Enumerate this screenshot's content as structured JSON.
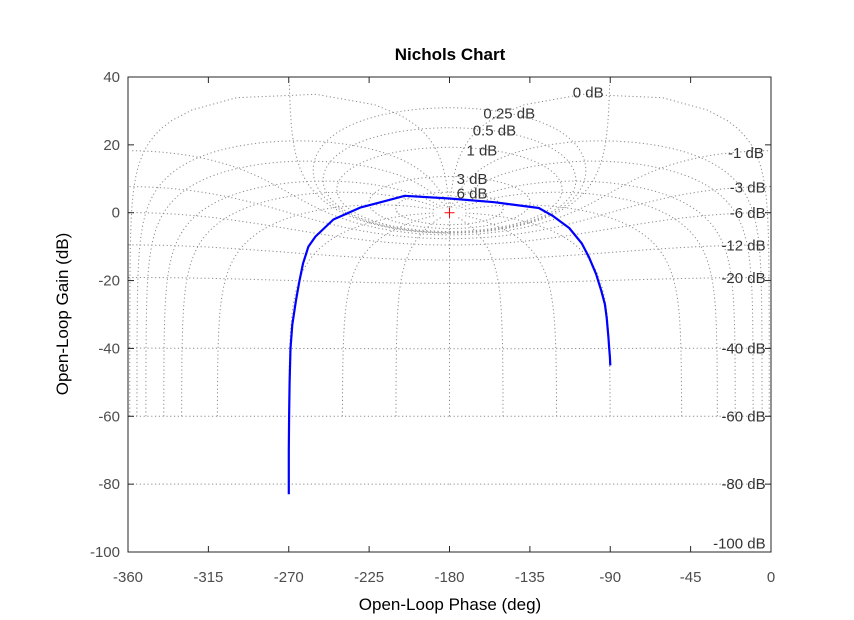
{
  "chart_data": {
    "type": "line",
    "title": "Nichols Chart",
    "xlabel": "Open-Loop Phase (deg)",
    "ylabel": "Open-Loop Gain (dB)",
    "xlim": [
      -360,
      0
    ],
    "ylim": [
      -100,
      40
    ],
    "xticks": [
      -360,
      -315,
      -270,
      -225,
      -180,
      -135,
      -90,
      -45,
      0
    ],
    "yticks": [
      -100,
      -80,
      -60,
      -40,
      -20,
      0,
      20,
      40
    ],
    "grid": true,
    "critical_point": {
      "phase": -180,
      "gain": 0,
      "marker": "+",
      "color": "#ff0000"
    },
    "series": [
      {
        "color": "#0000ff",
        "phase": [
          -270,
          -270,
          -269.8,
          -269.5,
          -269,
          -268,
          -266,
          -264,
          -262,
          -259,
          -255,
          -245,
          -230,
          -205,
          -180,
          -155,
          -130,
          -122,
          -113,
          -106,
          -102,
          -98,
          -95,
          -93,
          -92,
          -91.5,
          -91,
          -90.6,
          -90.2,
          -90
        ],
        "gain": [
          -83,
          -70,
          -60,
          -50,
          -40,
          -33,
          -26,
          -20,
          -15,
          -10,
          -7,
          -2,
          1.5,
          5,
          4.2,
          3.1,
          1.4,
          -1,
          -4.5,
          -9,
          -13,
          -18,
          -23,
          -27,
          -31,
          -34,
          -37,
          -40,
          -42.5,
          -45
        ]
      }
    ],
    "closed_loop_gain_labels": [
      {
        "text": "0 dB",
        "phase": -111,
        "gain": 35.5
      },
      {
        "text": "0.25 dB",
        "phase": -161,
        "gain": 29.3
      },
      {
        "text": "0.5 dB",
        "phase": -167,
        "gain": 24.3
      },
      {
        "text": "1 dB",
        "phase": -170.5,
        "gain": 18.4
      },
      {
        "text": "3 dB",
        "phase": -176,
        "gain": 10
      },
      {
        "text": "6 dB",
        "phase": -176,
        "gain": 5.7
      },
      {
        "text": "-1 dB",
        "phase": -4,
        "gain": 17.6
      },
      {
        "text": "-3 dB",
        "phase": -3,
        "gain": 7.5
      },
      {
        "text": "-6 dB",
        "phase": -3,
        "gain": -0.1
      },
      {
        "text": "-12 dB",
        "phase": -3,
        "gain": -9.6
      },
      {
        "text": "-20 dB",
        "phase": -3,
        "gain": -19.2
      },
      {
        "text": "-40 dB",
        "phase": -3,
        "gain": -40
      },
      {
        "text": "-60 dB",
        "phase": -3,
        "gain": -60
      },
      {
        "text": "-80 dB",
        "phase": -3,
        "gain": -80
      },
      {
        "text": "-100 dB",
        "phase": -3,
        "gain": -97.5
      }
    ]
  }
}
